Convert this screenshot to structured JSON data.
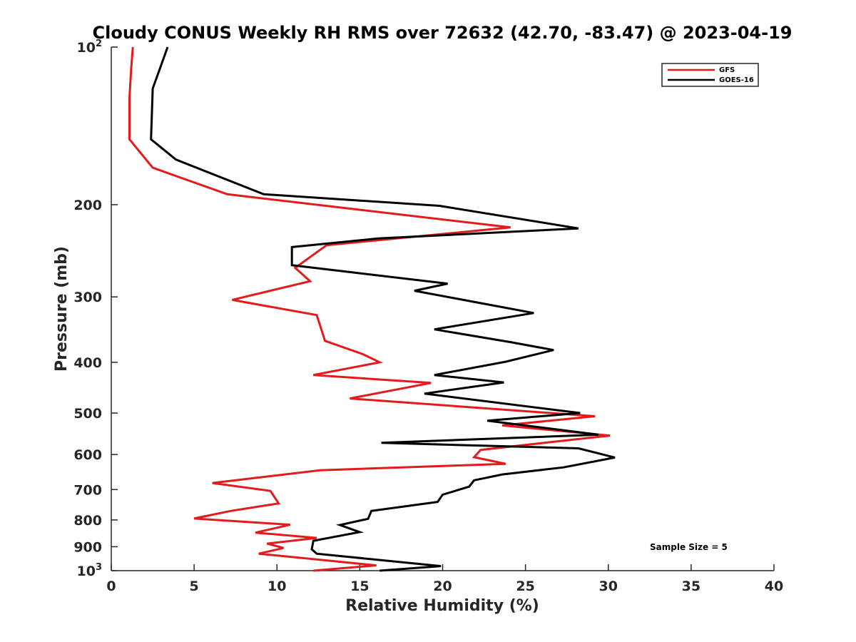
{
  "chart_data": {
    "type": "line",
    "title": "Cloudy CONUS Weekly RH RMS over 72632 (42.70, -83.47) @ 2023-04-19",
    "xlabel": "Relative Humidity (%)",
    "ylabel": "Pressure (mb)",
    "xlim": [
      0,
      40
    ],
    "ylim": [
      100,
      1000
    ],
    "y_scale": "log",
    "y_reversed": true,
    "x_ticks": [
      0,
      5,
      10,
      15,
      20,
      25,
      30,
      35,
      40
    ],
    "y_ticks": [
      {
        "value": 100,
        "base": "10",
        "exp": "2"
      },
      {
        "value": 200,
        "label": "200"
      },
      {
        "value": 300,
        "label": "300"
      },
      {
        "value": 400,
        "label": "400"
      },
      {
        "value": 500,
        "label": "500"
      },
      {
        "value": 600,
        "label": "600"
      },
      {
        "value": 700,
        "label": "700"
      },
      {
        "value": 800,
        "label": "800"
      },
      {
        "value": 900,
        "label": "900"
      },
      {
        "value": 1000,
        "base": "10",
        "exp": "3"
      }
    ],
    "grid": false,
    "legend_position": "top-right",
    "annotation": "Sample Size = 5",
    "series": [
      {
        "name": "GFS",
        "color": "#e41a1c",
        "points": [
          [
            1.3,
            100
          ],
          [
            1.2,
            110
          ],
          [
            1.1,
            125
          ],
          [
            1.1,
            145
          ],
          [
            1.1,
            150
          ],
          [
            2.5,
            170
          ],
          [
            7.0,
            191
          ],
          [
            24.1,
            221
          ],
          [
            13.0,
            239
          ],
          [
            11.1,
            264
          ],
          [
            12.0,
            280
          ],
          [
            7.3,
            304
          ],
          [
            12.4,
            325
          ],
          [
            12.9,
            364
          ],
          [
            15.2,
            386
          ],
          [
            16.2,
            400
          ],
          [
            12.2,
            423
          ],
          [
            19.3,
            438
          ],
          [
            14.4,
            469
          ],
          [
            29.2,
            507
          ],
          [
            23.6,
            528
          ],
          [
            30.1,
            552
          ],
          [
            22.3,
            588
          ],
          [
            21.9,
            607
          ],
          [
            23.8,
            625
          ],
          [
            12.6,
            643
          ],
          [
            6.1,
            680
          ],
          [
            9.6,
            704
          ],
          [
            10.1,
            744
          ],
          [
            7.2,
            769
          ],
          [
            5.0,
            795
          ],
          [
            10.8,
            817
          ],
          [
            8.7,
            846
          ],
          [
            12.4,
            866
          ],
          [
            9.4,
            888
          ],
          [
            10.4,
            905
          ],
          [
            8.9,
            928
          ],
          [
            16.0,
            977
          ],
          [
            12.2,
            1000
          ]
        ]
      },
      {
        "name": "GOES-16",
        "color": "#000000",
        "points": [
          [
            3.4,
            100
          ],
          [
            2.5,
            120
          ],
          [
            2.4,
            150
          ],
          [
            3.9,
            164
          ],
          [
            9.2,
            191
          ],
          [
            19.8,
            201
          ],
          [
            28.2,
            222
          ],
          [
            16.1,
            232
          ],
          [
            10.9,
            241
          ],
          [
            10.9,
            261
          ],
          [
            20.3,
            283
          ],
          [
            18.3,
            292
          ],
          [
            25.5,
            322
          ],
          [
            19.5,
            346
          ],
          [
            24.1,
            366
          ],
          [
            26.7,
            379
          ],
          [
            23.8,
            399
          ],
          [
            19.5,
            423
          ],
          [
            23.7,
            437
          ],
          [
            18.9,
            459
          ],
          [
            28.3,
            500
          ],
          [
            22.7,
            517
          ],
          [
            29.4,
            550
          ],
          [
            16.3,
            570
          ],
          [
            28.2,
            584
          ],
          [
            30.4,
            608
          ],
          [
            27.3,
            635
          ],
          [
            23.6,
            655
          ],
          [
            21.9,
            672
          ],
          [
            21.6,
            691
          ],
          [
            20.0,
            716
          ],
          [
            19.7,
            739
          ],
          [
            15.7,
            769
          ],
          [
            15.5,
            796
          ],
          [
            13.8,
            818
          ],
          [
            15.0,
            844
          ],
          [
            12.2,
            877
          ],
          [
            12.1,
            910
          ],
          [
            12.4,
            928
          ],
          [
            19.9,
            980
          ],
          [
            16.2,
            1000
          ]
        ]
      }
    ]
  }
}
